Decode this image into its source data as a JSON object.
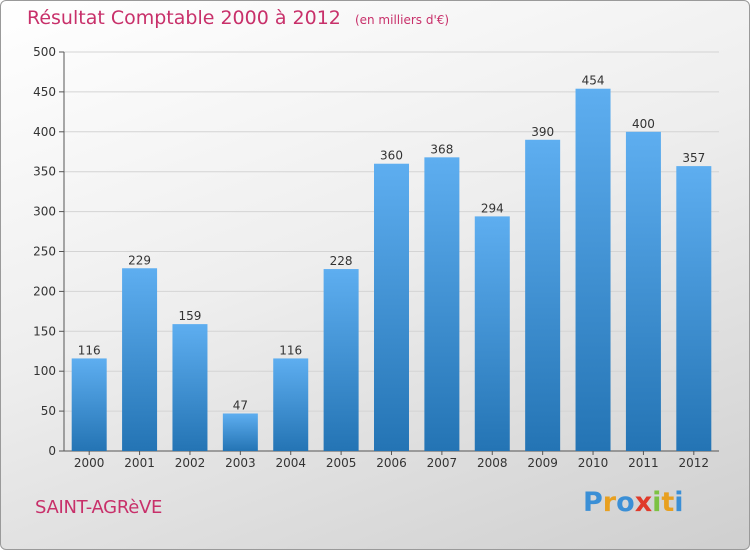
{
  "header": {
    "title": "Résultat Comptable 2000 à 2012",
    "subtitle": "(en milliers d'€)"
  },
  "footer": {
    "place": "SAINT-AGRèVE",
    "logo_letters": [
      "P",
      "r",
      "o",
      "x",
      "i",
      "t",
      "i"
    ],
    "logo_colors": [
      "#3a8fd6",
      "#e8a020",
      "#3a8fd6",
      "#e03a2a",
      "#7cc242",
      "#e8a020",
      "#3a8fd6"
    ]
  },
  "colors": {
    "bar_light": "#5eaef0",
    "bar_dark": "#2474b4",
    "title": "#c8306a"
  },
  "chart_data": {
    "type": "bar",
    "categories": [
      "2000",
      "2001",
      "2002",
      "2003",
      "2004",
      "2005",
      "2006",
      "2007",
      "2008",
      "2009",
      "2010",
      "2011",
      "2012"
    ],
    "values": [
      116,
      229,
      159,
      47,
      116,
      228,
      360,
      368,
      294,
      390,
      454,
      400,
      357
    ],
    "ylim": [
      0,
      500
    ],
    "yticks": [
      0,
      50,
      100,
      150,
      200,
      250,
      300,
      350,
      400,
      450,
      500
    ],
    "grid": true,
    "xlabel": "",
    "ylabel": ""
  }
}
